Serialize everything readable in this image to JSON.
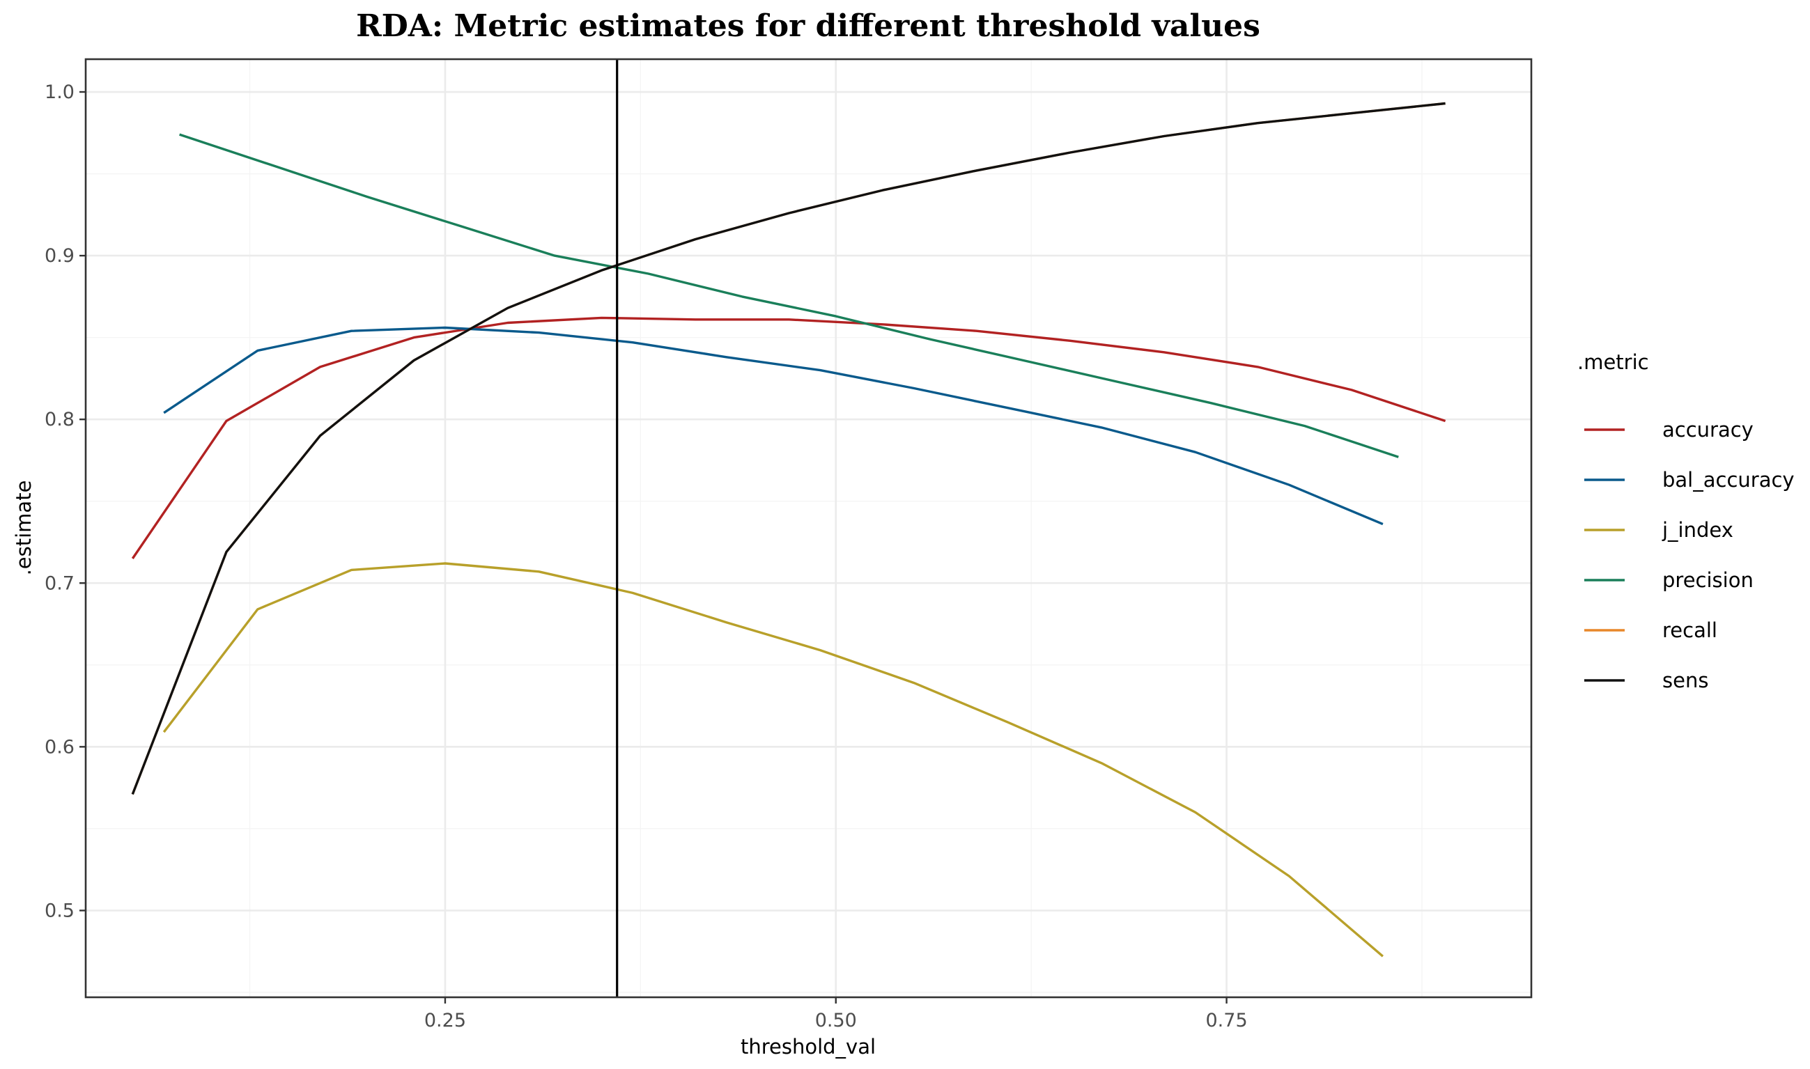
{
  "chart_data": {
    "type": "line",
    "title": "RDA: Metric estimates for different threshold values",
    "xlabel": "threshold_val",
    "ylabel": ".estimate",
    "xlim": [
      0.02,
      0.945
    ],
    "ylim": [
      0.447,
      1.02
    ],
    "x_ticks": [
      0.25,
      0.5,
      0.75
    ],
    "x_tick_labels": [
      "0.25",
      "0.50",
      "0.75"
    ],
    "y_ticks": [
      0.5,
      0.6,
      0.7,
      0.8,
      0.9,
      1.0
    ],
    "y_tick_labels": [
      "0.5",
      "0.6",
      "0.7",
      "0.8",
      "0.9",
      "1.0"
    ],
    "grid": true,
    "vline": 0.36,
    "legend_title": ".metric",
    "legend_position": "right",
    "series": [
      {
        "name": "accuracy",
        "color": "#B22222",
        "x": [
          0.05,
          0.11,
          0.17,
          0.23,
          0.29,
          0.35,
          0.41,
          0.47,
          0.53,
          0.59,
          0.65,
          0.71,
          0.77,
          0.83,
          0.89
        ],
        "y": [
          0.715,
          0.799,
          0.832,
          0.85,
          0.859,
          0.862,
          0.861,
          0.861,
          0.858,
          0.854,
          0.848,
          0.841,
          0.832,
          0.818,
          0.799
        ]
      },
      {
        "name": "bal_accuracy",
        "color": "#0A5A8C",
        "x": [
          0.07,
          0.13,
          0.19,
          0.25,
          0.31,
          0.37,
          0.43,
          0.49,
          0.55,
          0.61,
          0.67,
          0.73,
          0.79,
          0.85
        ],
        "y": [
          0.804,
          0.842,
          0.854,
          0.856,
          0.853,
          0.847,
          0.838,
          0.83,
          0.819,
          0.807,
          0.795,
          0.78,
          0.76,
          0.736
        ]
      },
      {
        "name": "j_index",
        "color": "#B8A02A",
        "x": [
          0.07,
          0.13,
          0.19,
          0.25,
          0.31,
          0.37,
          0.43,
          0.49,
          0.55,
          0.61,
          0.67,
          0.73,
          0.79,
          0.85
        ],
        "y": [
          0.609,
          0.684,
          0.708,
          0.712,
          0.707,
          0.694,
          0.676,
          0.659,
          0.639,
          0.615,
          0.59,
          0.56,
          0.521,
          0.472
        ]
      },
      {
        "name": "precision",
        "color": "#1A7F5A",
        "x": [
          0.08,
          0.14,
          0.2,
          0.26,
          0.32,
          0.38,
          0.44,
          0.5,
          0.56,
          0.62,
          0.68,
          0.74,
          0.8,
          0.86
        ],
        "y": [
          0.974,
          0.955,
          0.936,
          0.918,
          0.9,
          0.889,
          0.875,
          0.863,
          0.849,
          0.836,
          0.823,
          0.81,
          0.796,
          0.777
        ]
      },
      {
        "name": "recall",
        "color": "#E8872A",
        "x": [
          0.05,
          0.11,
          0.17,
          0.23,
          0.29,
          0.35,
          0.41,
          0.47,
          0.53,
          0.59,
          0.65,
          0.71,
          0.77,
          0.83,
          0.89
        ],
        "y": [
          0.571,
          0.719,
          0.79,
          0.836,
          0.868,
          0.891,
          0.91,
          0.926,
          0.94,
          0.952,
          0.963,
          0.973,
          0.981,
          0.987,
          0.993
        ]
      },
      {
        "name": "sens",
        "color": "#111111",
        "x": [
          0.05,
          0.11,
          0.17,
          0.23,
          0.29,
          0.35,
          0.41,
          0.47,
          0.53,
          0.59,
          0.65,
          0.71,
          0.77,
          0.83,
          0.89
        ],
        "y": [
          0.571,
          0.719,
          0.79,
          0.836,
          0.868,
          0.891,
          0.91,
          0.926,
          0.94,
          0.952,
          0.963,
          0.973,
          0.981,
          0.987,
          0.993
        ]
      }
    ]
  }
}
